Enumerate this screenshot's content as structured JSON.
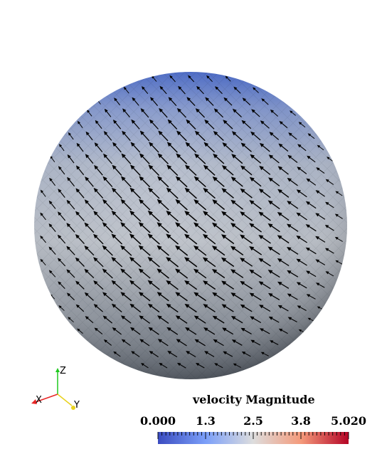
{
  "scalar_bar": {
    "title": "velocity Magnitude",
    "tick_labels": [
      "0.000",
      "1.3",
      "2.5",
      "3.8",
      "5.020"
    ],
    "range": [
      0.0,
      5.02
    ],
    "colormap": [
      "#3b4cc0",
      "#dddddd",
      "#b40426"
    ]
  },
  "orientation_axes": {
    "x_label": "X",
    "y_label": "Y",
    "z_label": "Z",
    "x_color": "#e82626",
    "y_color": "#e8d21e",
    "z_color": "#1ec81e"
  },
  "sphere": {
    "top_color": "#5b76c6",
    "mid_color": "#b0b8c6",
    "bottom_color": "#5c6470",
    "glyph_color": "#000000"
  }
}
